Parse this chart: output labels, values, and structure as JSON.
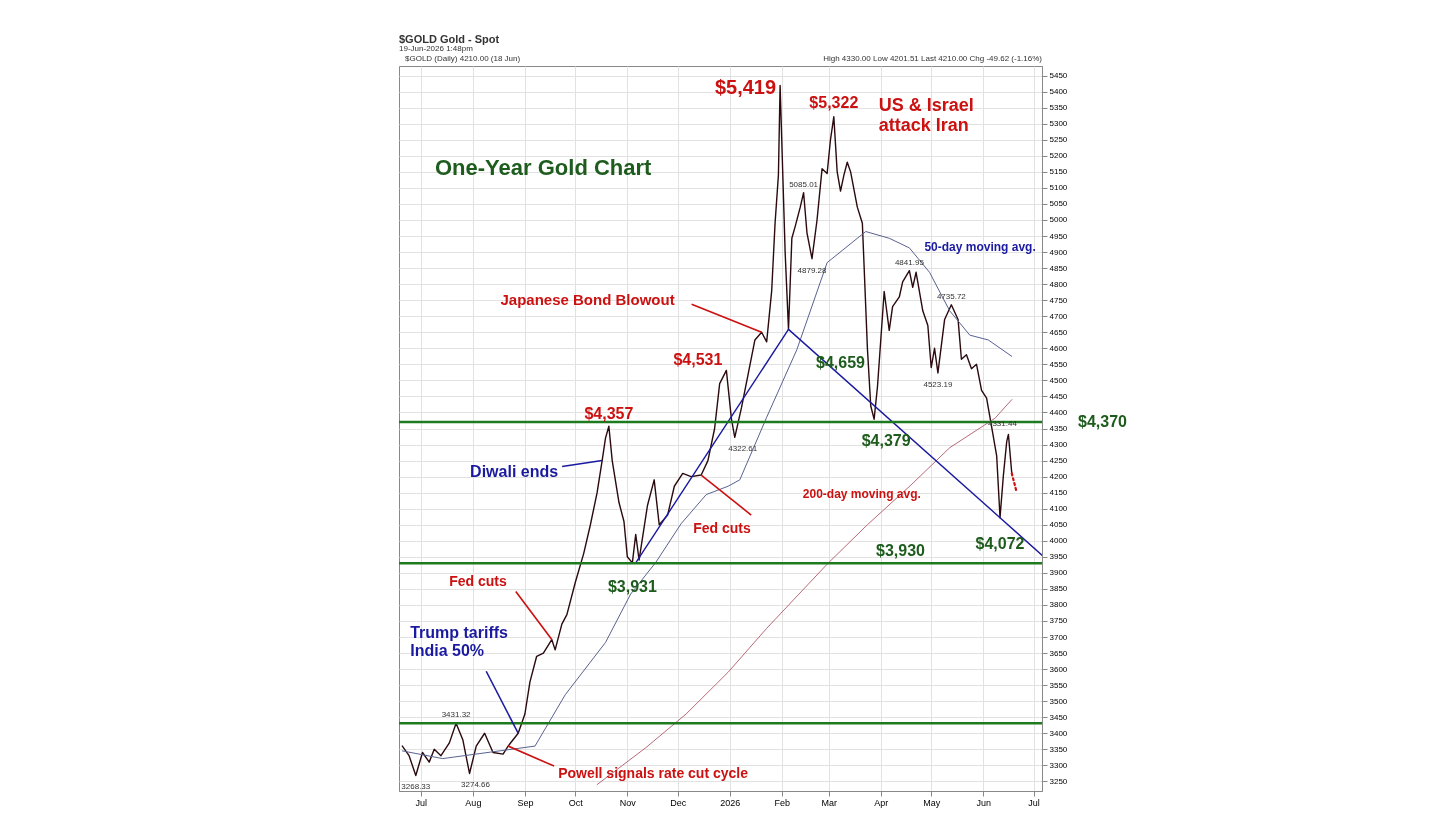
{
  "chart_data": {
    "type": "line",
    "title": "One-Year Gold Chart",
    "xlim": [
      "2025-06-18",
      "2026-07-06"
    ],
    "xticks": [
      {
        "value": "2025-07-01",
        "label": "Jul"
      },
      {
        "value": "2025-08-01",
        "label": "Aug"
      },
      {
        "value": "2025-09-01",
        "label": "Sep"
      },
      {
        "value": "2025-10-01",
        "label": "Oct"
      },
      {
        "value": "2025-11-01",
        "label": "Nov"
      },
      {
        "value": "2025-12-01",
        "label": "Dec"
      },
      {
        "value": "2026-01-01",
        "label": "2026"
      },
      {
        "value": "2026-02-01",
        "label": "Feb"
      },
      {
        "value": "2026-03-01",
        "label": "Mar"
      },
      {
        "value": "2026-04-01",
        "label": "Apr"
      },
      {
        "value": "2026-05-01",
        "label": "May"
      },
      {
        "value": "2026-06-01",
        "label": "Jun"
      },
      {
        "value": "2026-07-01",
        "label": "Jul"
      }
    ],
    "ylim": [
      3220,
      5480
    ],
    "yticks": [
      3250,
      3300,
      3350,
      3400,
      3450,
      3500,
      3550,
      3600,
      3650,
      3700,
      3750,
      3800,
      3850,
      3900,
      3950,
      4000,
      4050,
      4100,
      4150,
      4200,
      4250,
      4300,
      4350,
      4400,
      4450,
      4500,
      4550,
      4600,
      4650,
      4700,
      4750,
      4800,
      4850,
      4900,
      4950,
      5000,
      5050,
      5100,
      5150,
      5200,
      5250,
      5300,
      5350,
      5400,
      5450
    ],
    "grid": true,
    "marker": "none",
    "series": [
      {
        "color": "#2a0a0e",
        "x": [
          "2025-06-20",
          "2025-06-24",
          "2025-06-28",
          "2025-07-02",
          "2025-07-06",
          "2025-07-09",
          "2025-07-13",
          "2025-07-18",
          "2025-07-22",
          "2025-07-26",
          "2025-07-30",
          "2025-08-03",
          "2025-08-08",
          "2025-08-13",
          "2025-08-19",
          "2025-08-22",
          "2025-08-28",
          "2025-09-01",
          "2025-09-04",
          "2025-09-08",
          "2025-09-12",
          "2025-09-17",
          "2025-09-19",
          "2025-09-23",
          "2025-09-26",
          "2025-10-01",
          "2025-10-06",
          "2025-10-10",
          "2025-10-14",
          "2025-10-17",
          "2025-10-19",
          "2025-10-21",
          "2025-10-23",
          "2025-10-27",
          "2025-10-30",
          "2025-11-01",
          "2025-11-04",
          "2025-11-06",
          "2025-11-08",
          "2025-11-13",
          "2025-11-17",
          "2025-11-20",
          "2025-11-25",
          "2025-11-29",
          "2025-12-04",
          "2025-12-09",
          "2025-12-15",
          "2025-12-19",
          "2025-12-23",
          "2025-12-26",
          "2025-12-30",
          "2026-01-02",
          "2026-01-04",
          "2026-01-08",
          "2026-01-12",
          "2026-01-16",
          "2026-01-20",
          "2026-01-23",
          "2026-01-26",
          "2026-01-28",
          "2026-01-30",
          "2026-01-31",
          "2026-02-03",
          "2026-02-05",
          "2026-02-07",
          "2026-02-09",
          "2026-02-12",
          "2026-02-14",
          "2026-02-16",
          "2026-02-19",
          "2026-02-22",
          "2026-02-25",
          "2026-02-28",
          "2026-03-02",
          "2026-03-04",
          "2026-03-06",
          "2026-03-08",
          "2026-03-10",
          "2026-03-12",
          "2026-03-14",
          "2026-03-18",
          "2026-03-21",
          "2026-03-24",
          "2026-03-26",
          "2026-03-28",
          "2026-03-30",
          "2026-04-03",
          "2026-04-06",
          "2026-04-08",
          "2026-04-12",
          "2026-04-14",
          "2026-04-18",
          "2026-04-20",
          "2026-04-22",
          "2026-04-26",
          "2026-04-29",
          "2026-05-01",
          "2026-05-03",
          "2026-05-05",
          "2026-05-09",
          "2026-05-13",
          "2026-05-17",
          "2026-05-19",
          "2026-05-22",
          "2026-05-25",
          "2026-05-28",
          "2026-05-31",
          "2026-06-03",
          "2026-06-06",
          "2026-06-09",
          "2026-06-11",
          "2026-06-13",
          "2026-06-15",
          "2026-06-16",
          "2026-06-18"
        ],
        "values": [
          3360,
          3330,
          3268.33,
          3340,
          3310,
          3350,
          3330,
          3370,
          3431.32,
          3380,
          3274.66,
          3360,
          3400,
          3340,
          3335,
          3360,
          3400,
          3460,
          3560,
          3640,
          3650,
          3692,
          3660,
          3740,
          3770,
          3870,
          3960,
          4050,
          4150,
          4250,
          4320,
          4357,
          4250,
          4120,
          4060,
          3950,
          3931,
          4020,
          3940,
          4110,
          4190,
          4050,
          4080,
          4170,
          4210,
          4200,
          4205,
          4250,
          4350,
          4490,
          4531,
          4380,
          4322.61,
          4415,
          4520,
          4626,
          4650,
          4620,
          4780,
          4990,
          5140,
          5419,
          4900,
          4659,
          4943,
          4980,
          5040,
          5085.01,
          4960,
          4879.28,
          5000,
          5160,
          5145,
          5250,
          5322,
          5150,
          5090,
          5140,
          5180,
          5150,
          5040,
          4990,
          4600,
          4420,
          4379,
          4480,
          4777,
          4656,
          4730,
          4760,
          4807,
          4841.95,
          4790,
          4837,
          4717,
          4671,
          4540,
          4600,
          4523.19,
          4690,
          4735.72,
          4690,
          4566,
          4580,
          4536,
          4550,
          4469,
          4445,
          4355,
          4265,
          4072,
          4204,
          4310,
          4331.44,
          4210
        ]
      },
      {
        "color": "#cc1111",
        "line_style": "dotted",
        "x": [
          "2026-06-18",
          "2026-06-21"
        ],
        "values": [
          4210,
          4150
        ]
      },
      {
        "name": "50-day moving avg.",
        "color": "#5a6290",
        "x": [
          "2025-06-20",
          "2025-07-14",
          "2025-09-07",
          "2025-09-25",
          "2025-10-19",
          "2025-11-03",
          "2025-11-18",
          "2025-12-03",
          "2025-12-18",
          "2025-12-31",
          "2026-01-07",
          "2026-01-23",
          "2026-02-10",
          "2026-02-28",
          "2026-03-23",
          "2026-04-06",
          "2026-04-18",
          "2026-04-30",
          "2026-05-12",
          "2026-05-24",
          "2026-06-04",
          "2026-06-18"
        ],
        "values": [
          3345,
          3321,
          3360,
          3520,
          3683,
          3834,
          3933,
          4053,
          4144,
          4170,
          4190,
          4385,
          4596,
          4867,
          4964,
          4943,
          4913,
          4837,
          4717,
          4641,
          4626,
          4575
        ]
      },
      {
        "name": "200-day moving avg.",
        "color": "#b86a78",
        "x": [
          "2025-10-14",
          "2025-11-12",
          "2025-12-06",
          "2025-12-31",
          "2026-01-23",
          "2026-02-28",
          "2026-03-24",
          "2026-04-19",
          "2026-05-12",
          "2026-06-08",
          "2026-06-18"
        ],
        "values": [
          3240,
          3355,
          3460,
          3590,
          3727,
          3927,
          4050,
          4174,
          4290,
          4382,
          4440
        ]
      },
      {
        "color": "#1a1aa0",
        "x": [
          "2025-11-06",
          "2026-02-05"
        ],
        "values": [
          3931,
          4659
        ]
      },
      {
        "color": "#1a1aa0",
        "x": [
          "2026-02-05",
          "2026-06-11",
          "2026-07-06"
        ],
        "values": [
          4659,
          4072,
          3955
        ]
      }
    ],
    "ref_lines": [
      {
        "axis": "y",
        "value": 4370,
        "label": "$4,370",
        "color": "#1e7a1e"
      },
      {
        "axis": "y",
        "value": 3930,
        "label": "$3,930",
        "color": "#1e7a1e"
      },
      {
        "axis": "y",
        "value": 3431,
        "color": "#1e7a1e"
      }
    ],
    "annotations": [
      "$GOLD Gold - Spot",
      "19-Jun-2026 1:48pm",
      "$GOLD (Daily) 4210.00 (18 Jun)",
      "High 4330.00 Low 4201.51 Last 4210.00 Chg -49.62 (-1.16%)",
      {
        "text": "$5,419",
        "x": "2026-01-31",
        "y": 5419
      },
      {
        "text": "$5,322",
        "x": "2026-03-04",
        "y": 5322
      },
      {
        "text": "US & Israel\nattack Iran",
        "x": "2026-03-04",
        "y": 5300
      },
      {
        "text": "$4,531",
        "x": "2025-12-30",
        "y": 4531
      },
      {
        "text": "$4,357",
        "x": "2025-10-21",
        "y": 4357
      },
      {
        "text": "$4,659",
        "x": "2026-02-05",
        "y": 4659
      },
      {
        "text": "$3,931",
        "x": "2025-11-04",
        "y": 3931
      },
      {
        "text": "$4,379",
        "x": "2026-03-28",
        "y": 4379
      },
      {
        "text": "$4,072",
        "x": "2026-06-11",
        "y": 4072
      },
      {
        "text": "Japanese Bond Blowout",
        "x": "2026-01-20",
        "y": 4650
      },
      {
        "text": "Diwali ends",
        "x": "2025-10-17",
        "y": 4250
      },
      {
        "text": "Fed cuts",
        "x": "2025-12-15",
        "y": 4205
      },
      {
        "text": "Fed cuts",
        "x": "2025-09-17",
        "y": 3692
      },
      {
        "text": "Trump tariffs\nIndia 50%",
        "x": "2025-08-28",
        "y": 3400
      },
      {
        "text": "Powell signals rate cut cycle",
        "x": "2025-08-22",
        "y": 3360
      },
      {
        "text": "3268.33",
        "x": "2025-06-28",
        "y": 3268.33
      },
      {
        "text": "3431.32",
        "x": "2025-07-22",
        "y": 3431.32
      },
      {
        "text": "3274.66",
        "x": "2025-07-30",
        "y": 3274.66
      },
      {
        "text": "4322.61",
        "x": "2026-01-04",
        "y": 4322.61
      },
      {
        "text": "5085.01",
        "x": "2026-02-14",
        "y": 5085.01
      },
      {
        "text": "4879.28",
        "x": "2026-02-19",
        "y": 4879.28
      },
      {
        "text": "4841.95",
        "x": "2026-04-18",
        "y": 4841.95
      },
      {
        "text": "4735.72",
        "x": "2026-05-13",
        "y": 4735.72
      },
      {
        "text": "4523.19",
        "x": "2026-05-05",
        "y": 4523.19
      },
      {
        "text": "4331.44",
        "x": "2026-06-16",
        "y": 4331.44
      }
    ]
  }
}
